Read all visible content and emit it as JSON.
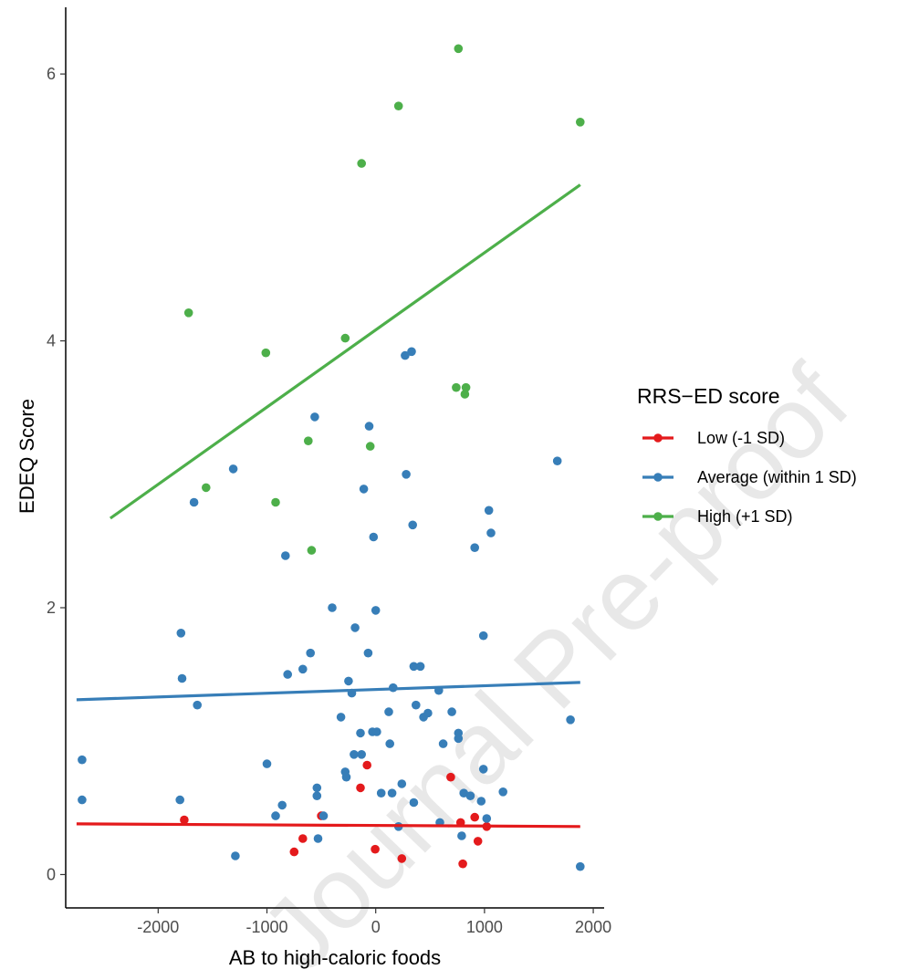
{
  "chart_data": {
    "type": "scatter",
    "title": "",
    "xlabel": "AB to high-caloric foods",
    "ylabel": "EDEQ Score",
    "xlim": [
      -2850,
      2100
    ],
    "ylim": [
      -0.25,
      6.5
    ],
    "x_ticks": [
      -2000,
      -1000,
      0,
      1000,
      2000
    ],
    "y_ticks": [
      0,
      2,
      4,
      6
    ],
    "grid": false,
    "legend": {
      "title": "RRS−ED  score",
      "position": "right"
    },
    "watermark": "Journal Pre-proof",
    "series": [
      {
        "name": "Low (-1 SD)",
        "color": "#e41a1c",
        "points": [
          [
            -1760,
            0.41
          ],
          [
            -750,
            0.17
          ],
          [
            -670,
            0.27
          ],
          [
            -500,
            0.44
          ],
          [
            -140,
            0.65
          ],
          [
            -80,
            0.82
          ],
          [
            -5,
            0.19
          ],
          [
            240,
            0.12
          ],
          [
            690,
            0.73
          ],
          [
            780,
            0.39
          ],
          [
            800,
            0.08
          ],
          [
            910,
            0.43
          ],
          [
            940,
            0.25
          ],
          [
            1020,
            0.36
          ]
        ],
        "trend": {
          "x": [
            -2750,
            1880
          ],
          "y": [
            0.38,
            0.36
          ]
        }
      },
      {
        "name": "Average (within 1 SD)",
        "color": "#377eb8",
        "points": [
          [
            -2700,
            0.86
          ],
          [
            -2700,
            0.56
          ],
          [
            -1800,
            0.56
          ],
          [
            -1790,
            1.81
          ],
          [
            -1780,
            1.47
          ],
          [
            -1670,
            2.79
          ],
          [
            -1640,
            1.27
          ],
          [
            -1310,
            3.04
          ],
          [
            -1290,
            0.14
          ],
          [
            -1000,
            0.83
          ],
          [
            -920,
            0.44
          ],
          [
            -860,
            0.52
          ],
          [
            -830,
            2.39
          ],
          [
            -810,
            1.5
          ],
          [
            -670,
            1.54
          ],
          [
            -600,
            1.66
          ],
          [
            -560,
            3.43
          ],
          [
            -540,
            0.65
          ],
          [
            -540,
            0.59
          ],
          [
            -530,
            0.27
          ],
          [
            -480,
            0.44
          ],
          [
            -400,
            2.0
          ],
          [
            -320,
            1.18
          ],
          [
            -280,
            0.77
          ],
          [
            -270,
            0.73
          ],
          [
            -250,
            1.45
          ],
          [
            -220,
            1.36
          ],
          [
            -200,
            0.9
          ],
          [
            -190,
            1.85
          ],
          [
            -140,
            1.06
          ],
          [
            -130,
            0.9
          ],
          [
            -110,
            2.89
          ],
          [
            -70,
            1.66
          ],
          [
            -60,
            3.36
          ],
          [
            -30,
            1.07
          ],
          [
            -20,
            2.53
          ],
          [
            0,
            1.98
          ],
          [
            10,
            1.07
          ],
          [
            50,
            0.61
          ],
          [
            120,
            1.22
          ],
          [
            130,
            0.98
          ],
          [
            150,
            0.61
          ],
          [
            160,
            1.4
          ],
          [
            210,
            0.36
          ],
          [
            240,
            0.68
          ],
          [
            270,
            3.89
          ],
          [
            280,
            3.0
          ],
          [
            330,
            3.92
          ],
          [
            340,
            2.62
          ],
          [
            350,
            1.56
          ],
          [
            350,
            0.54
          ],
          [
            370,
            1.27
          ],
          [
            410,
            1.56
          ],
          [
            440,
            1.18
          ],
          [
            480,
            1.21
          ],
          [
            580,
            1.38
          ],
          [
            590,
            0.39
          ],
          [
            620,
            0.98
          ],
          [
            700,
            1.22
          ],
          [
            760,
            1.06
          ],
          [
            760,
            1.02
          ],
          [
            790,
            0.29
          ],
          [
            810,
            0.61
          ],
          [
            870,
            0.59
          ],
          [
            910,
            2.45
          ],
          [
            970,
            0.55
          ],
          [
            990,
            1.79
          ],
          [
            990,
            0.79
          ],
          [
            1020,
            0.42
          ],
          [
            1040,
            2.73
          ],
          [
            1060,
            2.56
          ],
          [
            1170,
            0.62
          ],
          [
            1670,
            3.1
          ],
          [
            1790,
            1.16
          ],
          [
            1880,
            0.06
          ]
        ],
        "trend": {
          "x": [
            -2750,
            1880
          ],
          "y": [
            1.31,
            1.44
          ]
        }
      },
      {
        "name": "High (+1 SD)",
        "color": "#4daf4a",
        "points": [
          [
            -1720,
            4.21
          ],
          [
            -1560,
            2.9
          ],
          [
            -1010,
            3.91
          ],
          [
            -920,
            2.79
          ],
          [
            -620,
            3.25
          ],
          [
            -590,
            2.43
          ],
          [
            -280,
            4.02
          ],
          [
            -130,
            5.33
          ],
          [
            -50,
            3.21
          ],
          [
            210,
            5.76
          ],
          [
            740,
            3.65
          ],
          [
            760,
            6.19
          ],
          [
            820,
            3.6
          ],
          [
            830,
            3.65
          ],
          [
            1880,
            5.64
          ]
        ],
        "trend": {
          "x": [
            -2440,
            1880
          ],
          "y": [
            2.67,
            5.17
          ]
        }
      }
    ]
  }
}
